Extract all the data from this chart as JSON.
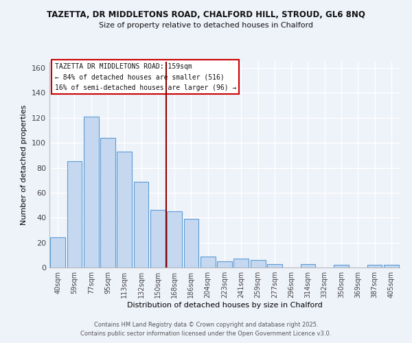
{
  "title_line1": "TAZETTA, DR MIDDLETONS ROAD, CHALFORD HILL, STROUD, GL6 8NQ",
  "title_line2": "Size of property relative to detached houses in Chalford",
  "xlabel": "Distribution of detached houses by size in Chalford",
  "ylabel": "Number of detached properties",
  "bar_labels": [
    "40sqm",
    "59sqm",
    "77sqm",
    "95sqm",
    "113sqm",
    "132sqm",
    "150sqm",
    "168sqm",
    "186sqm",
    "204sqm",
    "223sqm",
    "241sqm",
    "259sqm",
    "277sqm",
    "296sqm",
    "314sqm",
    "332sqm",
    "350sqm",
    "369sqm",
    "387sqm",
    "405sqm"
  ],
  "bar_values": [
    24,
    85,
    121,
    104,
    93,
    69,
    46,
    45,
    39,
    9,
    5,
    7,
    6,
    3,
    0,
    3,
    0,
    2,
    0,
    2,
    2
  ],
  "bar_color": "#c5d8f0",
  "bar_edge_color": "#5b9bd5",
  "vline_x_index": 6.5,
  "vline_color": "#8b0000",
  "annotation_box_text": "TAZETTA DR MIDDLETONS ROAD: 159sqm\n← 84% of detached houses are smaller (516)\n16% of semi-detached houses are larger (96) →",
  "ylim": [
    0,
    165
  ],
  "yticks": [
    0,
    20,
    40,
    60,
    80,
    100,
    120,
    140,
    160
  ],
  "bg_color": "#eef2f9",
  "grid_color": "#ffffff",
  "footer_line1": "Contains HM Land Registry data © Crown copyright and database right 2025.",
  "footer_line2": "Contains public sector information licensed under the Open Government Licence v3.0."
}
